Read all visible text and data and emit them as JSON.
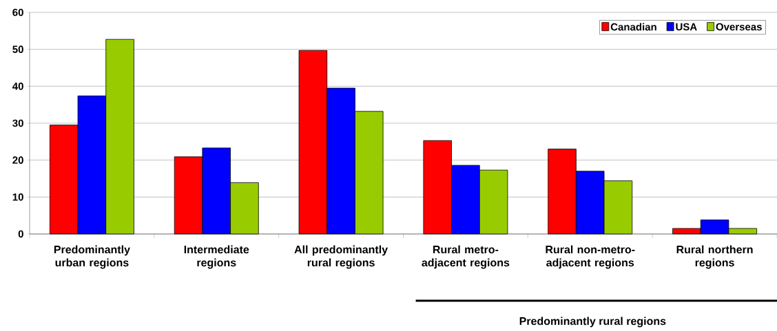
{
  "chart_data": {
    "type": "bar",
    "categories": [
      "Predominantly urban regions",
      "Intermediate regions",
      "All predominantly rural regions",
      "Rural metro-adjacent regions",
      "Rural non-metro-adjacent regions",
      "Rural northern regions"
    ],
    "series": [
      {
        "name": "Canadian",
        "color": "#ff0000",
        "values": [
          29.5,
          20.9,
          49.7,
          25.3,
          23.0,
          1.5
        ]
      },
      {
        "name": "USA",
        "color": "#0000ff",
        "values": [
          37.4,
          23.3,
          39.5,
          18.6,
          17.0,
          3.8
        ]
      },
      {
        "name": "Overseas",
        "color": "#99cc00",
        "values": [
          52.7,
          13.9,
          33.2,
          17.3,
          14.4,
          1.5
        ]
      }
    ],
    "ylim": [
      0,
      60
    ],
    "yticks": [
      0,
      10,
      20,
      30,
      40,
      50,
      60
    ],
    "grid": "y",
    "legend": "top right",
    "annotations": [
      "Predominantly rural regions"
    ]
  }
}
